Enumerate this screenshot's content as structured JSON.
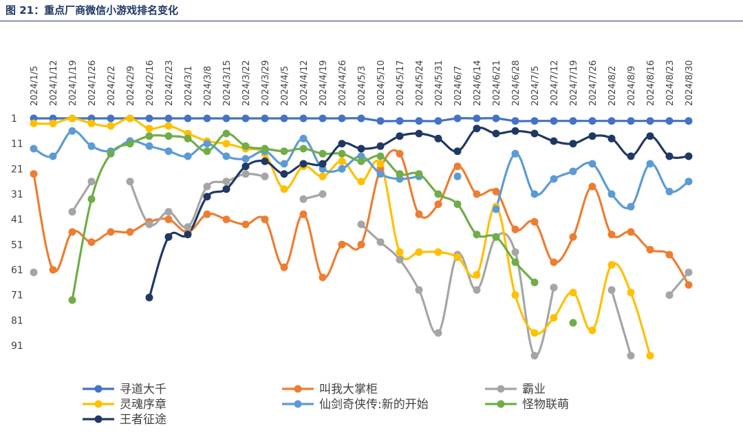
{
  "figure": {
    "title": "图 21：重点厂商微信小游戏排名变化"
  },
  "chart_data": {
    "type": "line",
    "title": "",
    "xlabel": "",
    "ylabel": "",
    "y_inverted": true,
    "ylim": [
      1,
      91
    ],
    "y_ticks": [
      1,
      11,
      21,
      31,
      41,
      51,
      61,
      71,
      81,
      91
    ],
    "grid": false,
    "legend_position": "bottom",
    "categories": [
      "2024/1/5",
      "2024/1/12",
      "2024/1/19",
      "2024/1/26",
      "2024/2/2",
      "2024/2/9",
      "2024/2/16",
      "2024/2/23",
      "2024/3/1",
      "2024/3/8",
      "2024/3/15",
      "2024/3/22",
      "2024/3/29",
      "2024/4/5",
      "2024/4/12",
      "2024/4/19",
      "2024/4/26",
      "2024/5/3",
      "2024/5/10",
      "2024/5/17",
      "2024/5/24",
      "2024/5/31",
      "2024/6/7",
      "2024/6/14",
      "2024/6/21",
      "2024/6/28",
      "2024/7/5",
      "2024/7/12",
      "2024/7/19",
      "2024/7/26",
      "2024/8/2",
      "2024/8/9",
      "2024/8/16",
      "2024/8/23",
      "2024/8/30"
    ],
    "series": [
      {
        "name": "寻道大千",
        "color": "#4472c4",
        "values": [
          1,
          1,
          1,
          1,
          1,
          1,
          1,
          1,
          1,
          1,
          1,
          1,
          1,
          1,
          1,
          1,
          1,
          1,
          2,
          2,
          2,
          2,
          1,
          1,
          1,
          2,
          2,
          2,
          2,
          2,
          2,
          2,
          2,
          2,
          2
        ]
      },
      {
        "name": "叫我大掌柜",
        "color": "#ed7d31",
        "values": [
          23,
          61,
          46,
          50,
          46,
          46,
          42,
          41,
          46,
          39,
          41,
          43,
          41,
          60,
          39,
          64,
          51,
          51,
          21,
          15,
          39,
          35,
          20,
          31,
          30,
          45,
          42,
          58,
          48,
          28,
          47,
          46,
          53,
          55,
          67
        ]
      },
      {
        "name": "霸业",
        "color": "#a5a5a5",
        "values": [
          62,
          null,
          38,
          26,
          null,
          26,
          43,
          38,
          44,
          28,
          26,
          23,
          24,
          null,
          33,
          31,
          null,
          43,
          50,
          57,
          69,
          86,
          55,
          69,
          48,
          54,
          95,
          68,
          null,
          null,
          69,
          95,
          null,
          71,
          62
        ]
      },
      {
        "name": "灵魂序章",
        "color": "#ffc000",
        "values": [
          3,
          3,
          1,
          3,
          4,
          1,
          5,
          4,
          7,
          10,
          11,
          13,
          15,
          29,
          20,
          24,
          18,
          26,
          19,
          54,
          54,
          54,
          56,
          63,
          36,
          71,
          86,
          80,
          70,
          85,
          59,
          70,
          95,
          null,
          null
        ]
      },
      {
        "name": "仙剑奇侠传:新的开始",
        "color": "#5b9bd5",
        "values": [
          13,
          16,
          6,
          12,
          14,
          10,
          12,
          14,
          16,
          11,
          16,
          17,
          14,
          19,
          9,
          21,
          21,
          16,
          23,
          25,
          24,
          null,
          24,
          null,
          37,
          15,
          31,
          25,
          22,
          19,
          31,
          36,
          19,
          30,
          26
        ]
      },
      {
        "name": "怪物联萌",
        "color": "#70ad47",
        "values": [
          null,
          null,
          73,
          33,
          15,
          11,
          8,
          8,
          9,
          14,
          7,
          12,
          13,
          14,
          13,
          15,
          15,
          18,
          16,
          23,
          23,
          31,
          35,
          47,
          48,
          58,
          66,
          null,
          82,
          null,
          null,
          null,
          null,
          null,
          null
        ]
      },
      {
        "name": "王者征途",
        "color": "#203864",
        "values": [
          null,
          null,
          null,
          null,
          null,
          null,
          72,
          48,
          47,
          32,
          29,
          20,
          18,
          23,
          19,
          19,
          11,
          13,
          12,
          8,
          7,
          9,
          14,
          5,
          7,
          6,
          7,
          10,
          11,
          8,
          9,
          16,
          8,
          16,
          16
        ]
      }
    ]
  }
}
